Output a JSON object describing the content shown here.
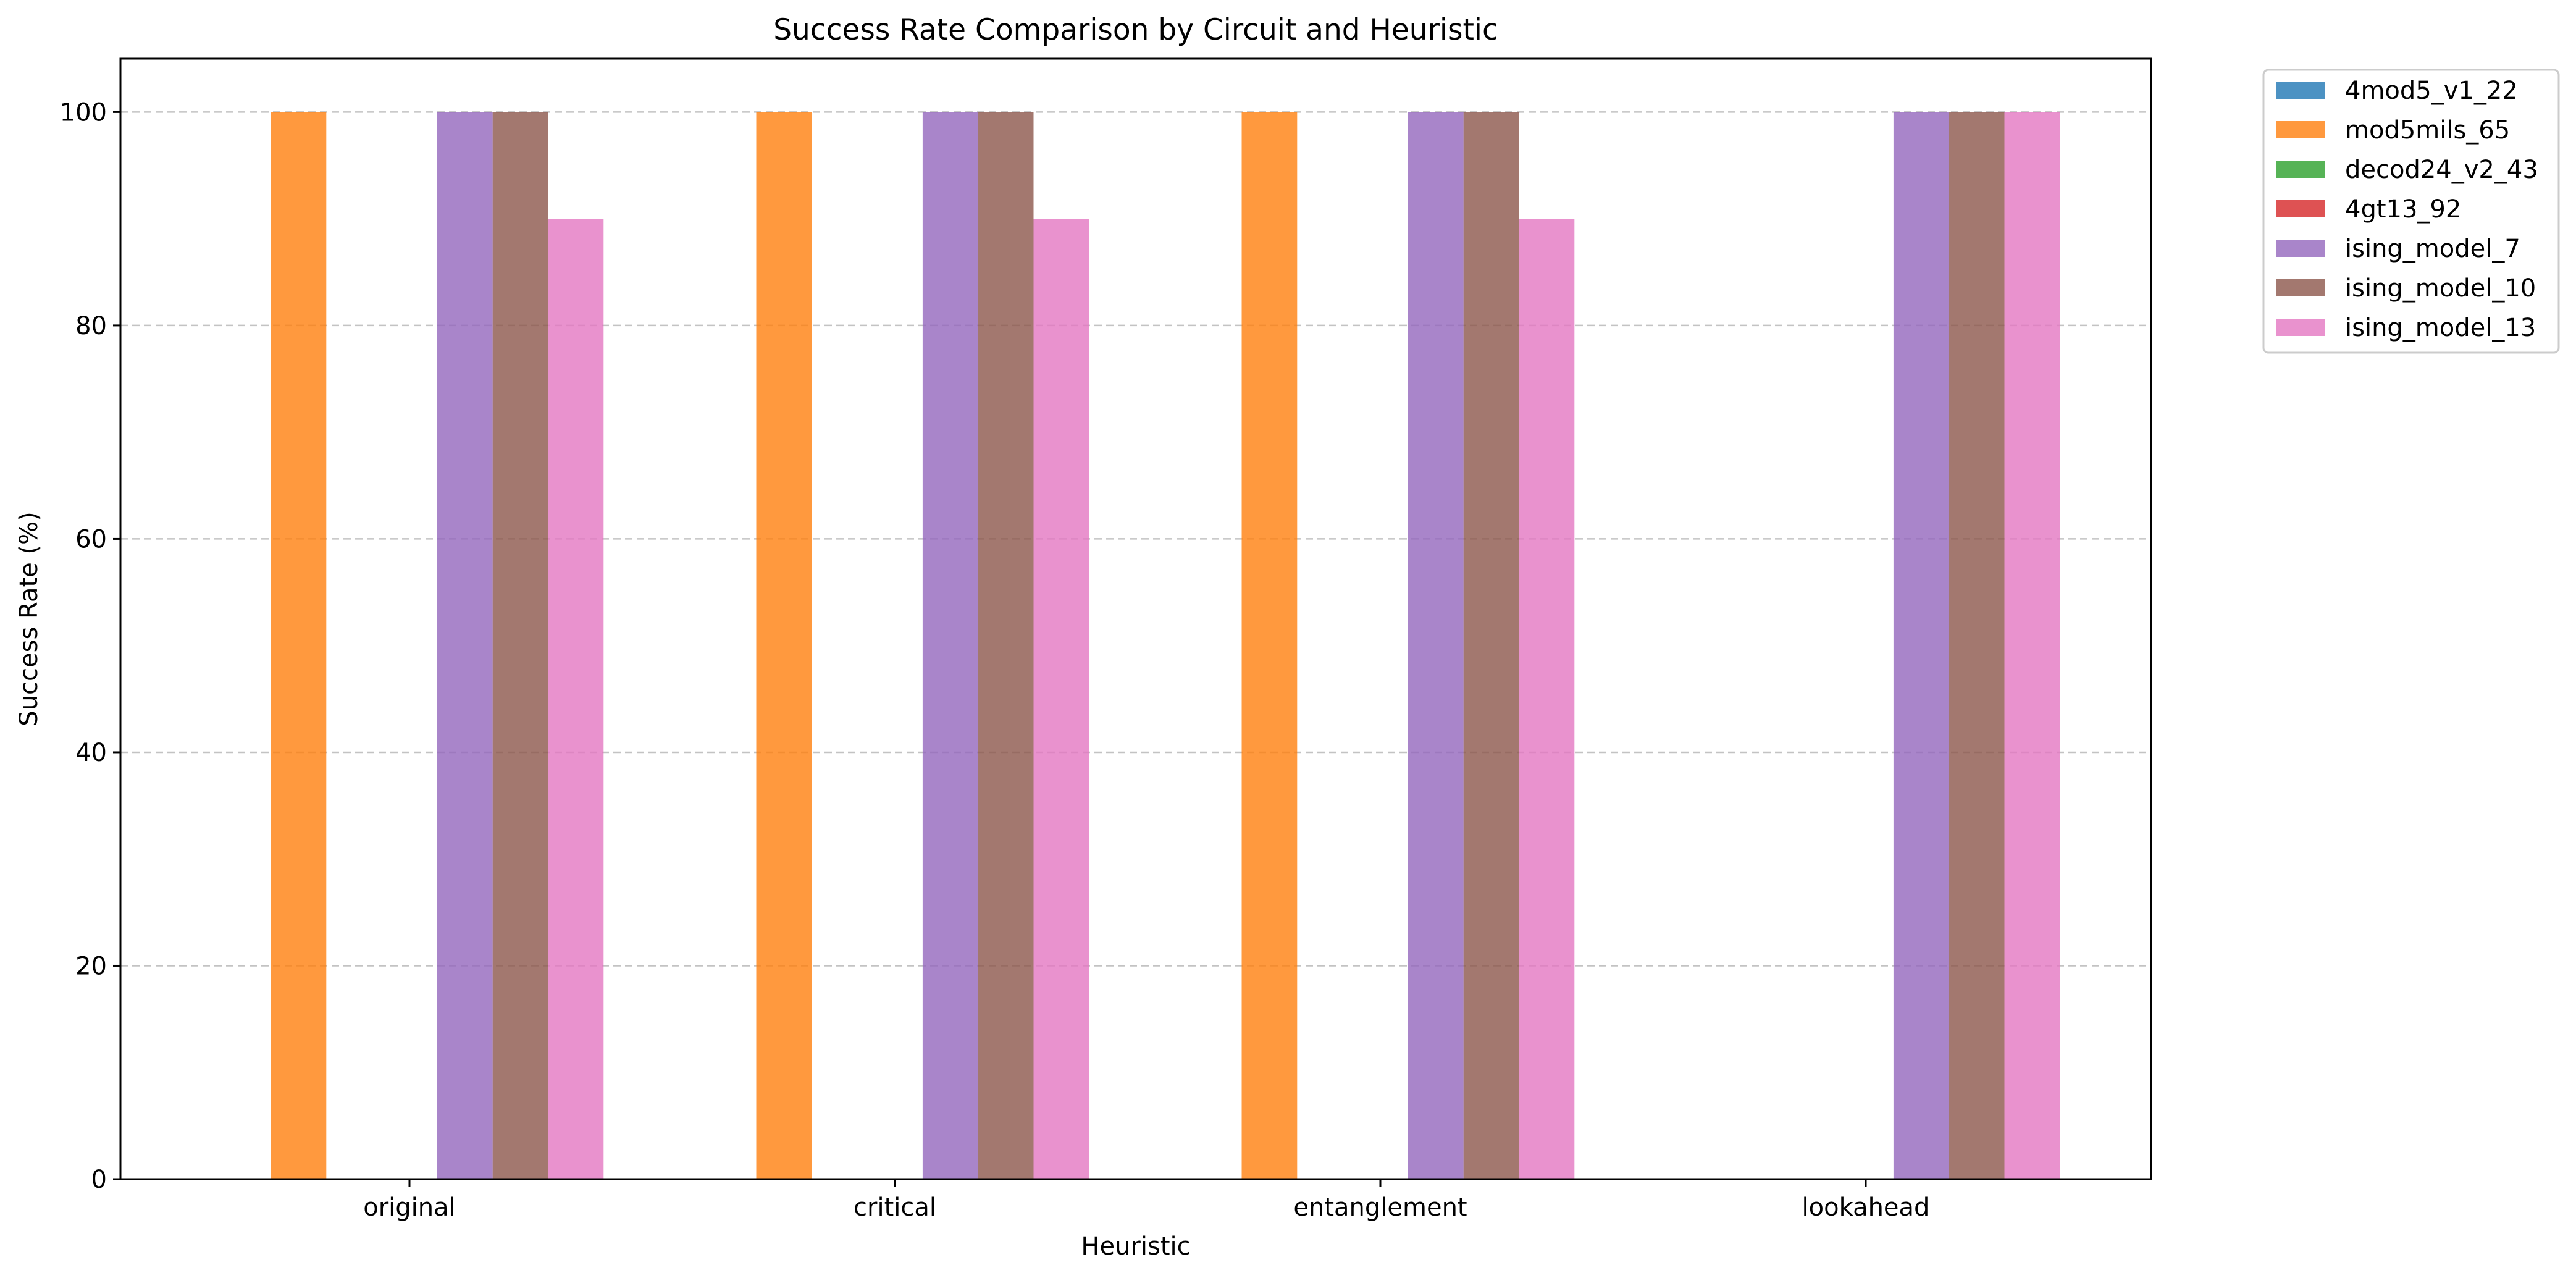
{
  "chart_data": {
    "type": "bar",
    "title": "Success Rate Comparison by Circuit and Heuristic",
    "xlabel": "Heuristic",
    "ylabel": "Success Rate (%)",
    "categories": [
      "original",
      "critical",
      "entanglement",
      "lookahead"
    ],
    "ylim": [
      0,
      105
    ],
    "yticks": [
      0,
      20,
      40,
      60,
      80,
      100
    ],
    "grid": "y-dashed",
    "legend_position": "outside-top-right",
    "series": [
      {
        "name": "4mod5_v1_22",
        "color": "#1f77b4",
        "values": [
          0,
          0,
          0,
          0
        ]
      },
      {
        "name": "mod5mils_65",
        "color": "#ff7f0e",
        "values": [
          100,
          100,
          100,
          0
        ]
      },
      {
        "name": "decod24_v2_43",
        "color": "#2ca02c",
        "values": [
          0,
          0,
          0,
          0
        ]
      },
      {
        "name": "4gt13_92",
        "color": "#d62728",
        "values": [
          0,
          0,
          0,
          0
        ]
      },
      {
        "name": "ising_model_7",
        "color": "#9467bd",
        "values": [
          100,
          100,
          100,
          100
        ]
      },
      {
        "name": "ising_model_10",
        "color": "#8c564b",
        "values": [
          100,
          100,
          100,
          100
        ]
      },
      {
        "name": "ising_model_13",
        "color": "#e377c2",
        "values": [
          90,
          90,
          90,
          100
        ]
      }
    ]
  }
}
